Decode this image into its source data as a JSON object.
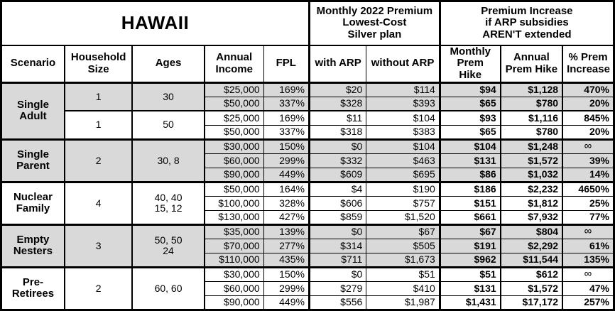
{
  "title": "HAWAII",
  "header": {
    "premium_group": "Monthly 2022 Premium\nLowest-Cost\nSilver plan",
    "increase_group": "Premium Increase\nif ARP subsidies\nAREN'T extended",
    "columns": {
      "scenario": "Scenario",
      "household_size": "Household\nSize",
      "ages": "Ages",
      "annual_income": "Annual\nIncome",
      "fpl": "FPL",
      "with_arp": "with ARP",
      "without_arp": "without ARP",
      "monthly_hike": "Monthly\nPrem Hike",
      "annual_hike": "Annual\nPrem Hike",
      "pct_increase": "% Prem\nIncrease"
    }
  },
  "colors": {
    "shaded_row": "#d9d9d9",
    "border": "#000000",
    "background": "#ffffff",
    "text": "#000000"
  },
  "groups": [
    {
      "scenario": "Single\nAdult",
      "subgroups": [
        {
          "household_size": "1",
          "ages": "30",
          "shaded": true,
          "rows": [
            {
              "income": "$25,000",
              "fpl": "169%",
              "with_arp": "$20",
              "without_arp": "$114",
              "monthly_hike": "$94",
              "annual_hike": "$1,128",
              "pct": "470%"
            },
            {
              "income": "$50,000",
              "fpl": "337%",
              "with_arp": "$328",
              "without_arp": "$393",
              "monthly_hike": "$65",
              "annual_hike": "$780",
              "pct": "20%"
            }
          ]
        },
        {
          "household_size": "1",
          "ages": "50",
          "shaded": false,
          "rows": [
            {
              "income": "$25,000",
              "fpl": "169%",
              "with_arp": "$11",
              "without_arp": "$104",
              "monthly_hike": "$93",
              "annual_hike": "$1,116",
              "pct": "845%"
            },
            {
              "income": "$50,000",
              "fpl": "337%",
              "with_arp": "$318",
              "without_arp": "$383",
              "monthly_hike": "$65",
              "annual_hike": "$780",
              "pct": "20%"
            }
          ]
        }
      ]
    },
    {
      "scenario": "Single\nParent",
      "subgroups": [
        {
          "household_size": "2",
          "ages": "30, 8",
          "shaded": true,
          "rows": [
            {
              "income": "$30,000",
              "fpl": "150%",
              "with_arp": "$0",
              "without_arp": "$104",
              "monthly_hike": "$104",
              "annual_hike": "$1,248",
              "pct": "∞"
            },
            {
              "income": "$60,000",
              "fpl": "299%",
              "with_arp": "$332",
              "without_arp": "$463",
              "monthly_hike": "$131",
              "annual_hike": "$1,572",
              "pct": "39%"
            },
            {
              "income": "$90,000",
              "fpl": "449%",
              "with_arp": "$609",
              "without_arp": "$695",
              "monthly_hike": "$86",
              "annual_hike": "$1,032",
              "pct": "14%"
            }
          ]
        }
      ]
    },
    {
      "scenario": "Nuclear\nFamily",
      "subgroups": [
        {
          "household_size": "4",
          "ages": "40, 40\n15, 12",
          "shaded": false,
          "rows": [
            {
              "income": "$50,000",
              "fpl": "164%",
              "with_arp": "$4",
              "without_arp": "$190",
              "monthly_hike": "$186",
              "annual_hike": "$2,232",
              "pct": "4650%"
            },
            {
              "income": "$100,000",
              "fpl": "328%",
              "with_arp": "$606",
              "without_arp": "$757",
              "monthly_hike": "$151",
              "annual_hike": "$1,812",
              "pct": "25%"
            },
            {
              "income": "$130,000",
              "fpl": "427%",
              "with_arp": "$859",
              "without_arp": "$1,520",
              "monthly_hike": "$661",
              "annual_hike": "$7,932",
              "pct": "77%"
            }
          ]
        }
      ]
    },
    {
      "scenario": "Empty\nNesters",
      "subgroups": [
        {
          "household_size": "3",
          "ages": "50, 50\n24",
          "shaded": true,
          "rows": [
            {
              "income": "$35,000",
              "fpl": "139%",
              "with_arp": "$0",
              "without_arp": "$67",
              "monthly_hike": "$67",
              "annual_hike": "$804",
              "pct": "∞"
            },
            {
              "income": "$70,000",
              "fpl": "277%",
              "with_arp": "$314",
              "without_arp": "$505",
              "monthly_hike": "$191",
              "annual_hike": "$2,292",
              "pct": "61%"
            },
            {
              "income": "$110,000",
              "fpl": "435%",
              "with_arp": "$711",
              "without_arp": "$1,673",
              "monthly_hike": "$962",
              "annual_hike": "$11,544",
              "pct": "135%"
            }
          ]
        }
      ]
    },
    {
      "scenario": "Pre-\nRetirees",
      "subgroups": [
        {
          "household_size": "2",
          "ages": "60, 60",
          "shaded": false,
          "rows": [
            {
              "income": "$30,000",
              "fpl": "150%",
              "with_arp": "$0",
              "without_arp": "$51",
              "monthly_hike": "$51",
              "annual_hike": "$612",
              "pct": "∞"
            },
            {
              "income": "$60,000",
              "fpl": "299%",
              "with_arp": "$279",
              "without_arp": "$410",
              "monthly_hike": "$131",
              "annual_hike": "$1,572",
              "pct": "47%"
            },
            {
              "income": "$90,000",
              "fpl": "449%",
              "with_arp": "$556",
              "without_arp": "$1,987",
              "monthly_hike": "$1,431",
              "annual_hike": "$17,172",
              "pct": "257%"
            }
          ]
        }
      ]
    }
  ]
}
